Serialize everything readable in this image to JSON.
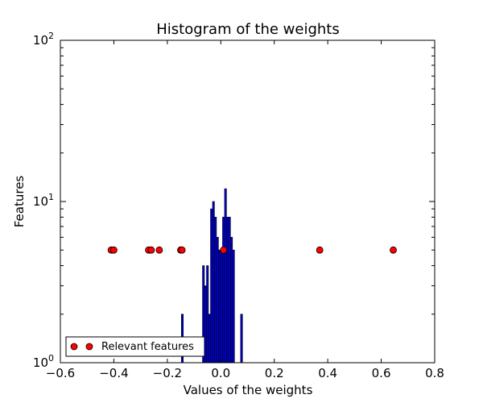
{
  "chart_data": {
    "type": "bar",
    "title": "Histogram of the weights",
    "xlabel": "Values of the weights",
    "ylabel": "Features",
    "xlim": [
      -0.6,
      0.8
    ],
    "ylim": [
      1,
      100
    ],
    "yscale": "log",
    "grid": false,
    "legend_location": "lower-left",
    "x_ticks": [
      "−0.6",
      "−0.4",
      "−0.2",
      "0.0",
      "0.2",
      "0.4",
      "0.6",
      "0.8"
    ],
    "x_tick_values": [
      -0.6,
      -0.4,
      -0.2,
      0.0,
      0.2,
      0.4,
      0.6,
      0.8
    ],
    "y_ticks": [
      {
        "base": "10",
        "exp": "0",
        "value": 1
      },
      {
        "base": "10",
        "exp": "1",
        "value": 10
      },
      {
        "base": "10",
        "exp": "2",
        "value": 100
      }
    ],
    "bar_color": "#0000cc",
    "histogram": {
      "bin_width": 0.00725,
      "bins": [
        {
          "x": -0.1475,
          "count": 2
        },
        {
          "x": -0.0685,
          "count": 4
        },
        {
          "x": -0.061,
          "count": 3
        },
        {
          "x": -0.0535,
          "count": 4
        },
        {
          "x": -0.046,
          "count": 2
        },
        {
          "x": -0.0385,
          "count": 9
        },
        {
          "x": -0.031,
          "count": 10
        },
        {
          "x": -0.0235,
          "count": 8
        },
        {
          "x": -0.016,
          "count": 6
        },
        {
          "x": -0.0085,
          "count": 5
        },
        {
          "x": -0.001,
          "count": 5
        },
        {
          "x": 0.0065,
          "count": 8
        },
        {
          "x": 0.014,
          "count": 12
        },
        {
          "x": 0.0215,
          "count": 8
        },
        {
          "x": 0.029,
          "count": 8
        },
        {
          "x": 0.0365,
          "count": 6
        },
        {
          "x": 0.044,
          "count": 5
        },
        {
          "x": 0.059,
          "count": 1
        },
        {
          "x": 0.0665,
          "count": 1
        },
        {
          "x": 0.074,
          "count": 2
        }
      ]
    },
    "scatter_series": {
      "name": "Relevant features",
      "color": "#ff0000",
      "y": 5,
      "x": [
        -0.41,
        -0.4,
        -0.27,
        -0.26,
        -0.23,
        -0.15,
        -0.145,
        0.01,
        0.37,
        0.645
      ]
    }
  }
}
